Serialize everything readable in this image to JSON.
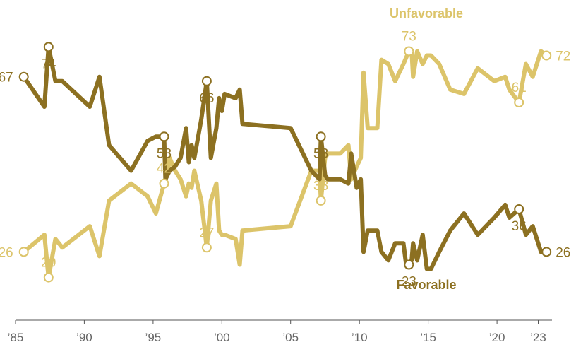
{
  "chart_data": {
    "type": "line",
    "title": "",
    "xlabel": "",
    "ylabel": "",
    "xlim": [
      1985,
      2024
    ],
    "ylim": [
      10,
      85
    ],
    "grid": false,
    "x_ticks": [
      {
        "x": 1985,
        "label": "’85"
      },
      {
        "x": 1990,
        "label": "’90"
      },
      {
        "x": 1995,
        "label": "’95"
      },
      {
        "x": 2000,
        "label": "’00"
      },
      {
        "x": 2005,
        "label": "’05"
      },
      {
        "x": 2010,
        "label": "’10"
      },
      {
        "x": 2015,
        "label": "’15"
      },
      {
        "x": 2020,
        "label": "’20"
      },
      {
        "x": 2023,
        "label": "’23"
      }
    ],
    "series": [
      {
        "name": "Favorable",
        "color": "#8c7021",
        "label_position": "below",
        "points": [
          [
            1985.6,
            67
          ],
          [
            1987.1,
            60
          ],
          [
            1987.4,
            74
          ],
          [
            1987.9,
            66
          ],
          [
            1988.4,
            66
          ],
          [
            1990.4,
            60
          ],
          [
            1991.1,
            67
          ],
          [
            1991.8,
            51
          ],
          [
            1993.4,
            45
          ],
          [
            1994.6,
            52
          ],
          [
            1995.2,
            53
          ],
          [
            1995.8,
            53
          ],
          [
            1995.9,
            43
          ],
          [
            1996.2,
            45
          ],
          [
            1996.6,
            46
          ],
          [
            1997.0,
            48
          ],
          [
            1997.4,
            55
          ],
          [
            1997.6,
            47
          ],
          [
            1997.8,
            51
          ],
          [
            1998.0,
            48
          ],
          [
            1998.5,
            57
          ],
          [
            1998.9,
            66
          ],
          [
            1999.2,
            48
          ],
          [
            1999.6,
            55
          ],
          [
            1999.8,
            62
          ],
          [
            2000.0,
            59
          ],
          [
            2000.2,
            63
          ],
          [
            2001.0,
            62
          ],
          [
            2001.3,
            64
          ],
          [
            2001.5,
            56
          ],
          [
            2005.0,
            55
          ],
          [
            2006.5,
            45
          ],
          [
            2007.1,
            43
          ],
          [
            2007.2,
            53
          ],
          [
            2007.5,
            44
          ],
          [
            2007.7,
            43
          ],
          [
            2008.6,
            43
          ],
          [
            2009.2,
            42
          ],
          [
            2009.4,
            49
          ],
          [
            2009.8,
            41
          ],
          [
            2010.1,
            43
          ],
          [
            2010.3,
            26
          ],
          [
            2010.6,
            31
          ],
          [
            2011.3,
            31
          ],
          [
            2011.6,
            26
          ],
          [
            2012.1,
            24
          ],
          [
            2012.6,
            28
          ],
          [
            2013.2,
            28
          ],
          [
            2013.4,
            23
          ],
          [
            2013.8,
            24
          ],
          [
            2013.9,
            28
          ],
          [
            2014.2,
            24
          ],
          [
            2014.6,
            30
          ],
          [
            2014.9,
            22
          ],
          [
            2015.2,
            22
          ],
          [
            2015.8,
            26
          ],
          [
            2016.6,
            31
          ],
          [
            2017.6,
            35
          ],
          [
            2018.6,
            30
          ],
          [
            2019.8,
            34
          ],
          [
            2020.6,
            37
          ],
          [
            2020.9,
            34
          ],
          [
            2021.6,
            36
          ],
          [
            2022.1,
            30
          ],
          [
            2022.6,
            32
          ],
          [
            2023.2,
            26
          ],
          [
            2023.6,
            26
          ]
        ],
        "labeled": [
          [
            1985.6,
            67
          ],
          [
            1987.4,
            74
          ],
          [
            1995.8,
            53
          ],
          [
            1998.9,
            66
          ],
          [
            2007.2,
            53
          ],
          [
            2013.6,
            23
          ],
          [
            2021.6,
            36
          ],
          [
            2023.6,
            26
          ]
        ]
      },
      {
        "name": "Unfavorable",
        "color": "#dcc46a",
        "label_position": "above",
        "points": [
          [
            1985.6,
            26
          ],
          [
            1987.1,
            30
          ],
          [
            1987.4,
            20
          ],
          [
            1987.9,
            29
          ],
          [
            1988.4,
            27
          ],
          [
            1990.4,
            32
          ],
          [
            1991.1,
            25
          ],
          [
            1991.8,
            38
          ],
          [
            1993.4,
            42
          ],
          [
            1994.6,
            39
          ],
          [
            1995.2,
            35
          ],
          [
            1995.8,
            42
          ],
          [
            1995.9,
            43
          ],
          [
            1996.2,
            48
          ],
          [
            1996.6,
            45
          ],
          [
            1997.0,
            43
          ],
          [
            1997.4,
            39
          ],
          [
            1997.6,
            42
          ],
          [
            1997.8,
            41
          ],
          [
            1998.0,
            45
          ],
          [
            1998.5,
            38
          ],
          [
            1998.9,
            27
          ],
          [
            1999.2,
            38
          ],
          [
            1999.6,
            42
          ],
          [
            1999.8,
            31
          ],
          [
            2000.0,
            30
          ],
          [
            2000.2,
            30
          ],
          [
            2001.0,
            29
          ],
          [
            2001.3,
            23
          ],
          [
            2001.5,
            31
          ],
          [
            2005.0,
            32
          ],
          [
            2006.5,
            45
          ],
          [
            2007.1,
            45
          ],
          [
            2007.2,
            38
          ],
          [
            2007.5,
            48
          ],
          [
            2007.7,
            49
          ],
          [
            2008.6,
            49
          ],
          [
            2009.2,
            51
          ],
          [
            2009.4,
            43
          ],
          [
            2009.8,
            46
          ],
          [
            2010.1,
            48
          ],
          [
            2010.3,
            68
          ],
          [
            2010.6,
            55
          ],
          [
            2011.3,
            55
          ],
          [
            2011.6,
            71
          ],
          [
            2012.1,
            70
          ],
          [
            2012.6,
            66
          ],
          [
            2013.2,
            70
          ],
          [
            2013.6,
            73
          ],
          [
            2013.8,
            73
          ],
          [
            2013.9,
            67
          ],
          [
            2014.2,
            73
          ],
          [
            2014.6,
            70
          ],
          [
            2014.9,
            72
          ],
          [
            2015.2,
            72
          ],
          [
            2015.8,
            70
          ],
          [
            2016.6,
            64
          ],
          [
            2017.6,
            63
          ],
          [
            2018.6,
            69
          ],
          [
            2019.8,
            66
          ],
          [
            2020.6,
            67
          ],
          [
            2020.9,
            64
          ],
          [
            2021.6,
            61
          ],
          [
            2022.1,
            70
          ],
          [
            2022.6,
            67
          ],
          [
            2023.2,
            73
          ],
          [
            2023.6,
            72
          ]
        ],
        "labeled": [
          [
            1985.6,
            26
          ],
          [
            1987.4,
            20
          ],
          [
            1995.8,
            42
          ],
          [
            1998.9,
            27
          ],
          [
            2007.2,
            38
          ],
          [
            2013.6,
            73
          ],
          [
            2021.6,
            61
          ],
          [
            2023.6,
            72
          ]
        ]
      }
    ]
  }
}
